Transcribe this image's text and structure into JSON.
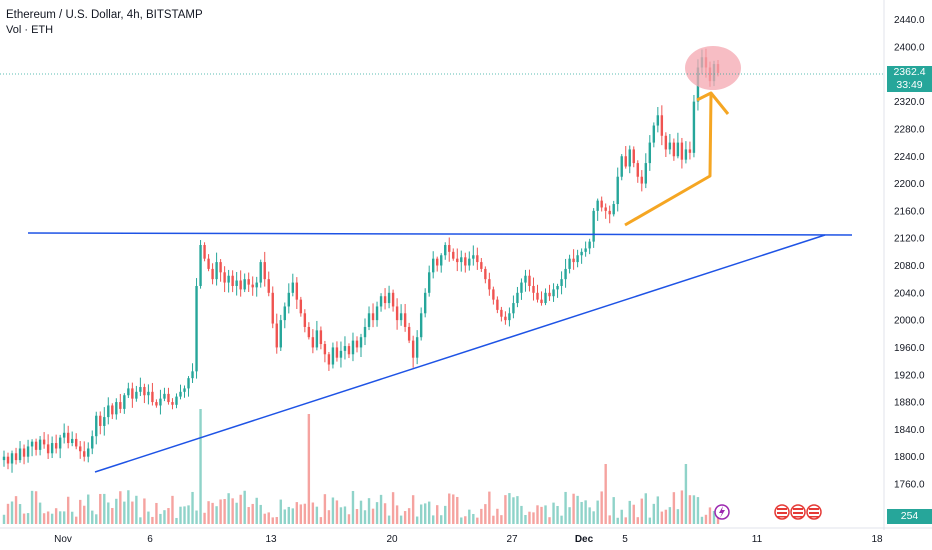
{
  "header": {
    "title": "Ethereum / U.S. Dollar, 4h, BITSTAMP",
    "volume_label": "Vol · ETH"
  },
  "price_tag": {
    "price": "2362.4",
    "countdown": "33:49"
  },
  "volume_tag": "254",
  "colors": {
    "up": "#26a69a",
    "down": "#ef5350",
    "vol_up": "#8fd3c9",
    "vol_down": "#f5a3a0",
    "trendline": "#1e53e5",
    "arrow": "#f5a623",
    "highlight": "#f4a7b0"
  },
  "chart_data": {
    "type": "candlestick",
    "title": "Ethereum / U.S. Dollar, 4h, BITSTAMP",
    "ylim": [
      1720,
      2460
    ],
    "y_ticks": [
      "2440.0",
      "2400.0",
      "2320.0",
      "2280.0",
      "2240.0",
      "2200.0",
      "2160.0",
      "2120.0",
      "2080.0",
      "2040.0",
      "2000.0",
      "1960.0",
      "1920.0",
      "1880.0",
      "1840.0",
      "1800.0",
      "1760.0"
    ],
    "x_ticks": [
      "Nov",
      "6",
      "13",
      "20",
      "27",
      "Dec",
      "5",
      "11",
      "18"
    ],
    "trend": [
      {
        "c": 1800
      },
      {
        "c": 1790
      },
      {
        "c": 1805
      },
      {
        "c": 1795
      },
      {
        "c": 1812
      },
      {
        "c": 1800
      },
      {
        "c": 1815
      },
      {
        "c": 1822
      },
      {
        "c": 1810
      },
      {
        "c": 1825
      },
      {
        "c": 1818
      },
      {
        "c": 1805
      },
      {
        "c": 1820
      },
      {
        "c": 1812
      },
      {
        "c": 1828
      },
      {
        "c": 1835
      },
      {
        "c": 1820
      },
      {
        "c": 1826
      },
      {
        "c": 1815
      },
      {
        "c": 1808
      },
      {
        "c": 1800
      },
      {
        "c": 1812
      },
      {
        "c": 1830
      },
      {
        "c": 1860
      },
      {
        "c": 1845
      },
      {
        "c": 1858
      },
      {
        "c": 1875
      },
      {
        "c": 1862
      },
      {
        "c": 1880
      },
      {
        "c": 1870
      },
      {
        "c": 1890
      },
      {
        "c": 1900
      },
      {
        "c": 1885
      },
      {
        "c": 1895
      },
      {
        "c": 1902
      },
      {
        "c": 1890
      },
      {
        "c": 1895
      },
      {
        "c": 1880
      },
      {
        "c": 1875
      },
      {
        "c": 1885
      },
      {
        "c": 1892
      },
      {
        "c": 1880
      },
      {
        "c": 1876
      },
      {
        "c": 1888
      },
      {
        "c": 1895
      },
      {
        "c": 1900
      },
      {
        "c": 1915
      },
      {
        "c": 1925
      },
      {
        "c": 2050
      },
      {
        "c": 2110
      },
      {
        "c": 2090
      },
      {
        "c": 2075
      },
      {
        "c": 2060
      },
      {
        "c": 2085
      },
      {
        "c": 2070
      },
      {
        "c": 2055
      },
      {
        "c": 2065
      },
      {
        "c": 2050
      },
      {
        "c": 2058
      },
      {
        "c": 2045
      },
      {
        "c": 2060
      },
      {
        "c": 2052
      },
      {
        "c": 2048
      },
      {
        "c": 2055
      },
      {
        "c": 2085
      },
      {
        "c": 2060
      },
      {
        "c": 2040
      },
      {
        "c": 1995
      },
      {
        "c": 1960
      },
      {
        "c": 2000
      },
      {
        "c": 2020
      },
      {
        "c": 2040
      },
      {
        "c": 2055
      },
      {
        "c": 2030
      },
      {
        "c": 2010
      },
      {
        "c": 1990
      },
      {
        "c": 1975
      },
      {
        "c": 1960
      },
      {
        "c": 1985
      },
      {
        "c": 1965
      },
      {
        "c": 1950
      },
      {
        "c": 1935
      },
      {
        "c": 1960
      },
      {
        "c": 1945
      },
      {
        "c": 1955
      },
      {
        "c": 1962
      },
      {
        "c": 1950
      },
      {
        "c": 1970
      },
      {
        "c": 1960
      },
      {
        "c": 1975
      },
      {
        "c": 1990
      },
      {
        "c": 2010
      },
      {
        "c": 2000
      },
      {
        "c": 2020
      },
      {
        "c": 2035
      },
      {
        "c": 2025
      },
      {
        "c": 2040
      },
      {
        "c": 2020
      },
      {
        "c": 2000
      },
      {
        "c": 2010
      },
      {
        "c": 1990
      },
      {
        "c": 1970
      },
      {
        "c": 1945
      },
      {
        "c": 1975
      },
      {
        "c": 2010
      },
      {
        "c": 2040
      },
      {
        "c": 2070
      },
      {
        "c": 2090
      },
      {
        "c": 2080
      },
      {
        "c": 2095
      },
      {
        "c": 2110
      },
      {
        "c": 2100
      },
      {
        "c": 2090
      },
      {
        "c": 2085
      },
      {
        "c": 2092
      },
      {
        "c": 2080
      },
      {
        "c": 2090
      },
      {
        "c": 2095
      },
      {
        "c": 2085
      },
      {
        "c": 2075
      },
      {
        "c": 2060
      },
      {
        "c": 2045
      },
      {
        "c": 2030
      },
      {
        "c": 2015
      },
      {
        "c": 2005
      },
      {
        "c": 2000
      },
      {
        "c": 2010
      },
      {
        "c": 2025
      },
      {
        "c": 2040
      },
      {
        "c": 2055
      },
      {
        "c": 2065
      },
      {
        "c": 2050
      },
      {
        "c": 2040
      },
      {
        "c": 2030
      },
      {
        "c": 2025
      },
      {
        "c": 2040
      },
      {
        "c": 2035
      },
      {
        "c": 2045
      },
      {
        "c": 2050
      },
      {
        "c": 2060
      },
      {
        "c": 2075
      },
      {
        "c": 2090
      },
      {
        "c": 2085
      },
      {
        "c": 2095
      },
      {
        "c": 2100
      },
      {
        "c": 2105
      },
      {
        "c": 2115
      },
      {
        "c": 2160
      },
      {
        "c": 2175
      },
      {
        "c": 2165
      },
      {
        "c": 2160
      },
      {
        "c": 2155
      },
      {
        "c": 2170
      },
      {
        "c": 2210
      },
      {
        "c": 2240
      },
      {
        "c": 2225
      },
      {
        "c": 2250
      },
      {
        "c": 2230
      },
      {
        "c": 2210
      },
      {
        "c": 2200
      },
      {
        "c": 2230
      },
      {
        "c": 2260
      },
      {
        "c": 2285
      },
      {
        "c": 2300
      },
      {
        "c": 2270
      },
      {
        "c": 2250
      },
      {
        "c": 2260
      },
      {
        "c": 2240
      },
      {
        "c": 2260
      },
      {
        "c": 2235
      },
      {
        "c": 2250
      },
      {
        "c": 2245
      },
      {
        "c": 2320
      },
      {
        "c": 2370
      },
      {
        "c": 2385
      },
      {
        "c": 2370
      },
      {
        "c": 2350
      },
      {
        "c": 2375
      },
      {
        "c": 2362
      }
    ]
  }
}
